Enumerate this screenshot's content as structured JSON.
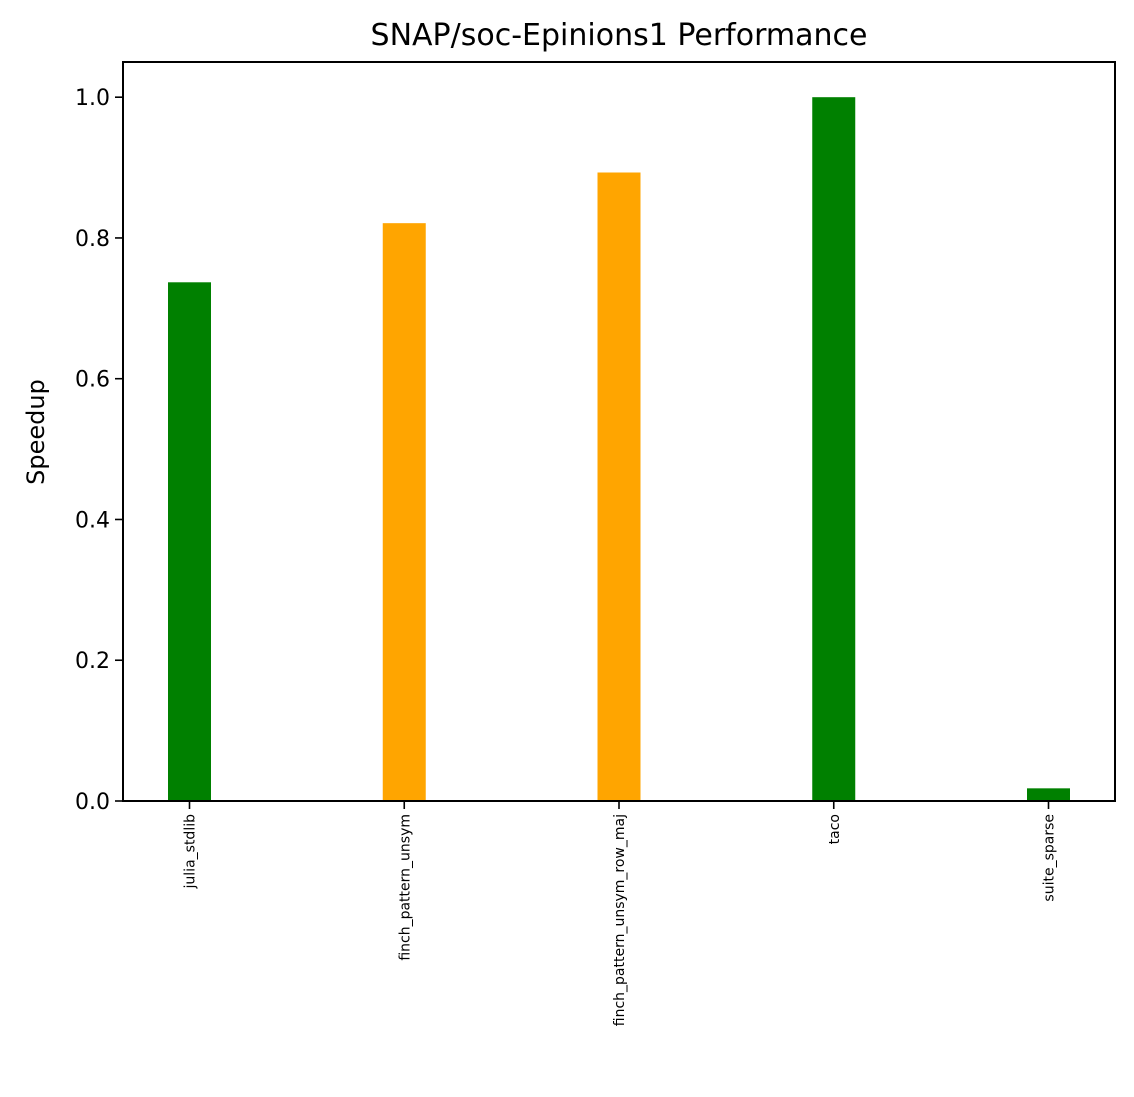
{
  "chart_data": {
    "type": "bar",
    "title": "SNAP/soc-Epinions1 Performance",
    "xlabel": "",
    "ylabel": "Speedup",
    "categories": [
      "julia_stdlib",
      "finch_pattern_unsym",
      "finch_pattern_unsym_row_maj",
      "taco",
      "suite_sparse"
    ],
    "values": [
      0.737,
      0.821,
      0.893,
      1.0,
      0.018
    ],
    "bar_colors": [
      "#008000",
      "#FFA500",
      "#FFA500",
      "#008000",
      "#008000"
    ],
    "ylim": [
      0,
      1.05
    ],
    "yticks": [
      0.0,
      0.2,
      0.4,
      0.6,
      0.8,
      1.0
    ],
    "ytick_labels": [
      "0.0",
      "0.2",
      "0.4",
      "0.6",
      "0.8",
      "1.0"
    ],
    "grid": false,
    "legend": "none"
  }
}
